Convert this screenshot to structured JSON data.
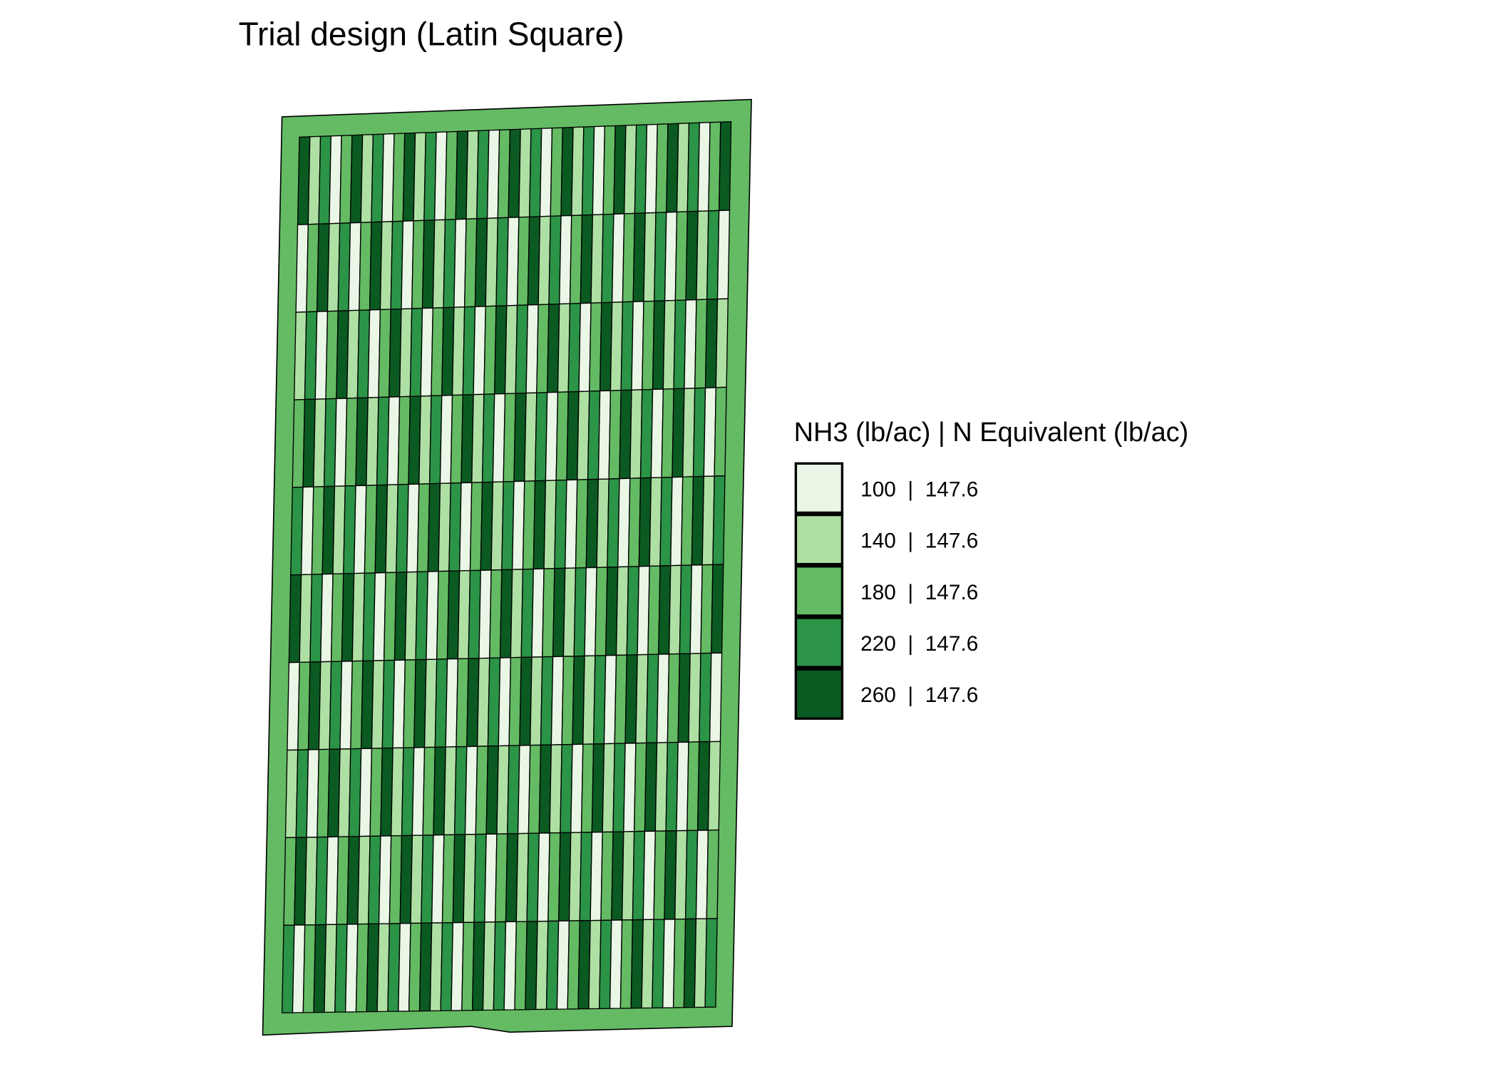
{
  "chart_data": {
    "type": "heatmap",
    "title": "Trial design (Latin Square)",
    "legend": {
      "title": "NH3 (lb/ac) | N Equivalent (lb/ac)",
      "placement": "right",
      "entries": [
        {
          "label": "100  |  147.6",
          "nh3": 100,
          "n_equivalent": 147.6,
          "color": "#eaf6e6"
        },
        {
          "label": "140  |  147.6",
          "nh3": 140,
          "n_equivalent": 147.6,
          "color": "#aee0a3"
        },
        {
          "label": "180  |  147.6",
          "nh3": 180,
          "n_equivalent": 147.6,
          "color": "#64bb64"
        },
        {
          "label": "220  |  147.6",
          "nh3": 220,
          "n_equivalent": 147.6,
          "color": "#2b9447"
        },
        {
          "label": "260  |  147.6",
          "nh3": 260,
          "n_equivalent": 147.6,
          "color": "#0b5a22"
        }
      ]
    },
    "headland_rate": 180,
    "plot_rates": [
      [
        260,
        140,
        220,
        100,
        180,
        260,
        140,
        220,
        100,
        180,
        260,
        140,
        220,
        100,
        180,
        260,
        140,
        220,
        100,
        180,
        260,
        140,
        220,
        100,
        180,
        260,
        140,
        220,
        100,
        180,
        260,
        140,
        220,
        100,
        180,
        260,
        140,
        220,
        100,
        180,
        260
      ],
      [
        100,
        180,
        260,
        140,
        220,
        100,
        180,
        260,
        140,
        220,
        100,
        180,
        260,
        140,
        220,
        100,
        180,
        260,
        140,
        220,
        100,
        180,
        260,
        140,
        220,
        100,
        180,
        260,
        140,
        220,
        100,
        180,
        260,
        140,
        220,
        100,
        180,
        260,
        140,
        220,
        100
      ],
      [
        140,
        220,
        100,
        180,
        260,
        140,
        220,
        100,
        180,
        260,
        140,
        220,
        100,
        180,
        260,
        140,
        220,
        100,
        180,
        260,
        140,
        220,
        100,
        180,
        260,
        140,
        220,
        100,
        180,
        260,
        140,
        220,
        100,
        180,
        260,
        140,
        220,
        100,
        180,
        260,
        140
      ],
      [
        180,
        260,
        140,
        220,
        100,
        180,
        260,
        140,
        220,
        100,
        180,
        260,
        140,
        220,
        100,
        180,
        260,
        140,
        220,
        100,
        180,
        260,
        140,
        220,
        100,
        180,
        260,
        140,
        220,
        100,
        180,
        260,
        140,
        220,
        100,
        180,
        260,
        140,
        220,
        100,
        180
      ],
      [
        220,
        100,
        180,
        260,
        140,
        220,
        100,
        180,
        260,
        140,
        220,
        100,
        180,
        260,
        140,
        220,
        100,
        180,
        260,
        140,
        220,
        100,
        180,
        260,
        140,
        220,
        100,
        180,
        260,
        140,
        220,
        100,
        180,
        260,
        140,
        220,
        100,
        180,
        260,
        140,
        220
      ],
      [
        260,
        140,
        220,
        100,
        180,
        260,
        140,
        220,
        100,
        180,
        260,
        140,
        220,
        100,
        180,
        260,
        140,
        220,
        100,
        180,
        260,
        140,
        220,
        100,
        180,
        260,
        140,
        220,
        100,
        180,
        260,
        140,
        220,
        100,
        180,
        260,
        140,
        220,
        100,
        180,
        260
      ],
      [
        100,
        180,
        260,
        140,
        220,
        100,
        180,
        260,
        140,
        220,
        100,
        180,
        260,
        140,
        220,
        100,
        180,
        260,
        140,
        220,
        100,
        180,
        260,
        140,
        220,
        100,
        180,
        260,
        140,
        220,
        100,
        180,
        260,
        140,
        220,
        100,
        180,
        260,
        140,
        220,
        100
      ],
      [
        140,
        220,
        100,
        180,
        260,
        140,
        220,
        100,
        180,
        260,
        140,
        220,
        100,
        180,
        260,
        140,
        220,
        100,
        180,
        260,
        140,
        220,
        100,
        180,
        260,
        140,
        220,
        100,
        180,
        260,
        140,
        220,
        100,
        180,
        260,
        140,
        220,
        100,
        180,
        260,
        140
      ],
      [
        180,
        260,
        140,
        220,
        100,
        180,
        260,
        140,
        220,
        100,
        180,
        260,
        140,
        220,
        100,
        180,
        260,
        140,
        220,
        100,
        180,
        260,
        140,
        220,
        100,
        180,
        260,
        140,
        220,
        100,
        180,
        260,
        140,
        220,
        100,
        180,
        260,
        140,
        220,
        100,
        180
      ],
      [
        220,
        100,
        180,
        260,
        140,
        220,
        100,
        180,
        260,
        140,
        220,
        100,
        180,
        260,
        140,
        220,
        100,
        180,
        260,
        140,
        220,
        100,
        180,
        260,
        140,
        220,
        100,
        180,
        260,
        140,
        220,
        100,
        180,
        260,
        140,
        220,
        100,
        180,
        260,
        140,
        220
      ]
    ]
  }
}
